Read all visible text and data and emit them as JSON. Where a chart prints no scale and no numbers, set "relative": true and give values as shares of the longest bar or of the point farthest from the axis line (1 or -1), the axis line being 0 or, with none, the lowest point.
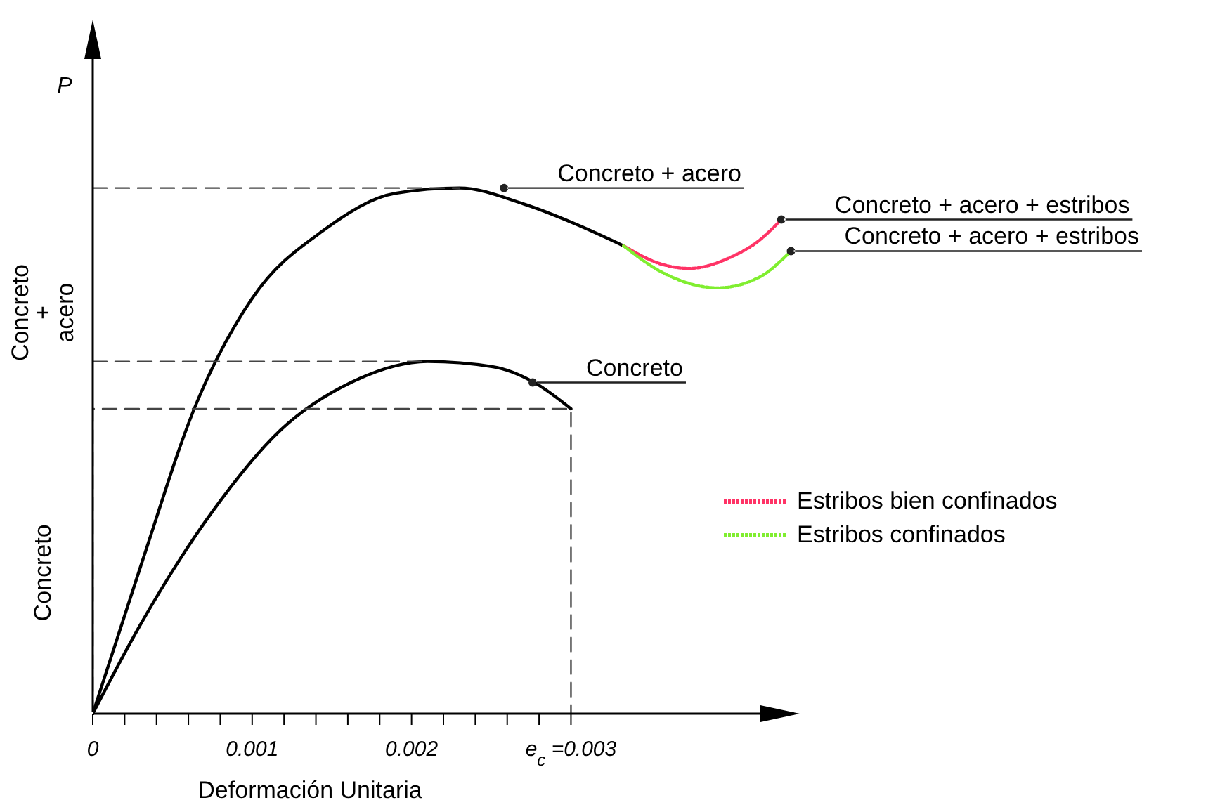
{
  "chart_data": {
    "type": "line",
    "relative": true,
    "ylabel": "P",
    "xlabel": "Deformación Unitaria",
    "xlim": [
      0,
      0.0044
    ],
    "xticks": [
      0,
      {
        "value": 0.0002,
        "label": null
      },
      {
        "value": 0.0004,
        "label": null
      },
      {
        "value": 0.0006,
        "label": null
      },
      {
        "value": 0.0008,
        "label": null
      },
      0.001,
      {
        "value": 0.0012,
        "label": null
      },
      {
        "value": 0.0014,
        "label": null
      },
      {
        "value": 0.0016,
        "label": null
      },
      {
        "value": 0.0018,
        "label": null
      },
      0.002,
      {
        "value": 0.0022,
        "label": null
      },
      {
        "value": 0.0024,
        "label": null
      },
      {
        "value": 0.0026,
        "label": null
      },
      {
        "value": 0.0028,
        "label": null
      },
      {
        "value": 0.003,
        "label": "e$_{c}$ =0.003"
      }
    ],
    "series": [
      {
        "color": "#000000",
        "x": [
          0,
          0.0003,
          0.00065,
          0.001,
          0.00145,
          0.0019,
          0.0023,
          0.0027,
          0.00304,
          0.00333
        ],
        "values": [
          0,
          0.28,
          0.59,
          0.79,
          0.92,
          0.99,
          1,
          0.97,
          0.93,
          0.89
        ]
      },
      {
        "color": "#000000",
        "x": [
          0,
          0.0003,
          0.00074,
          0.00118,
          0.00162,
          0.0021,
          0.00251,
          0.00277,
          0.003
        ],
        "values": [
          0,
          0.17,
          0.38,
          0.54,
          0.63,
          0.67,
          0.66,
          0.63,
          0.58
        ]
      },
      {
        "name": "Estribos bien confinados",
        "color": "#ff3366",
        "line_style": "dotted",
        "x": [
          0.00333,
          0.00357,
          0.00374,
          0.004,
          0.00418,
          0.00432
        ],
        "values": [
          0.89,
          0.855,
          0.847,
          0.868,
          0.9,
          0.94
        ]
      },
      {
        "name": "Estribos confinados",
        "color": "#80ee30",
        "line_style": "dotted",
        "x": [
          0.00333,
          0.00357,
          0.00392,
          0.00418,
          0.00438
        ],
        "values": [
          0.89,
          0.84,
          0.81,
          0.83,
          0.88
        ]
      },
      {
        "color": "#444444",
        "line_style": "dashed",
        "x": [
          0,
          0.0023
        ],
        "values": [
          1,
          1
        ]
      },
      {
        "color": "#444444",
        "line_style": "dashed",
        "x": [
          0,
          0.0021
        ],
        "values": [
          0.67,
          0.67
        ]
      },
      {
        "color": "#444444",
        "line_style": "dashed",
        "x": [
          0,
          0,
          0.003,
          0.003
        ],
        "values": [
          0,
          0.58,
          0.58,
          0
        ]
      }
    ],
    "annotations": [
      "Concreto\n+\nacero",
      "Concreto",
      {
        "text": "Concreto + acero",
        "x": 0.00258,
        "y": 1
      },
      {
        "text": "Concreto + acero + estribos",
        "x": 0.00432,
        "y": 0.94
      },
      {
        "text": "Concreto + acero + estribos",
        "x": 0.00438,
        "y": 0.88
      },
      {
        "text": "Concreto",
        "x": 0.00276,
        "y": 0.63
      }
    ],
    "legend": "right",
    "marker": "none",
    "line_style": "solid"
  }
}
